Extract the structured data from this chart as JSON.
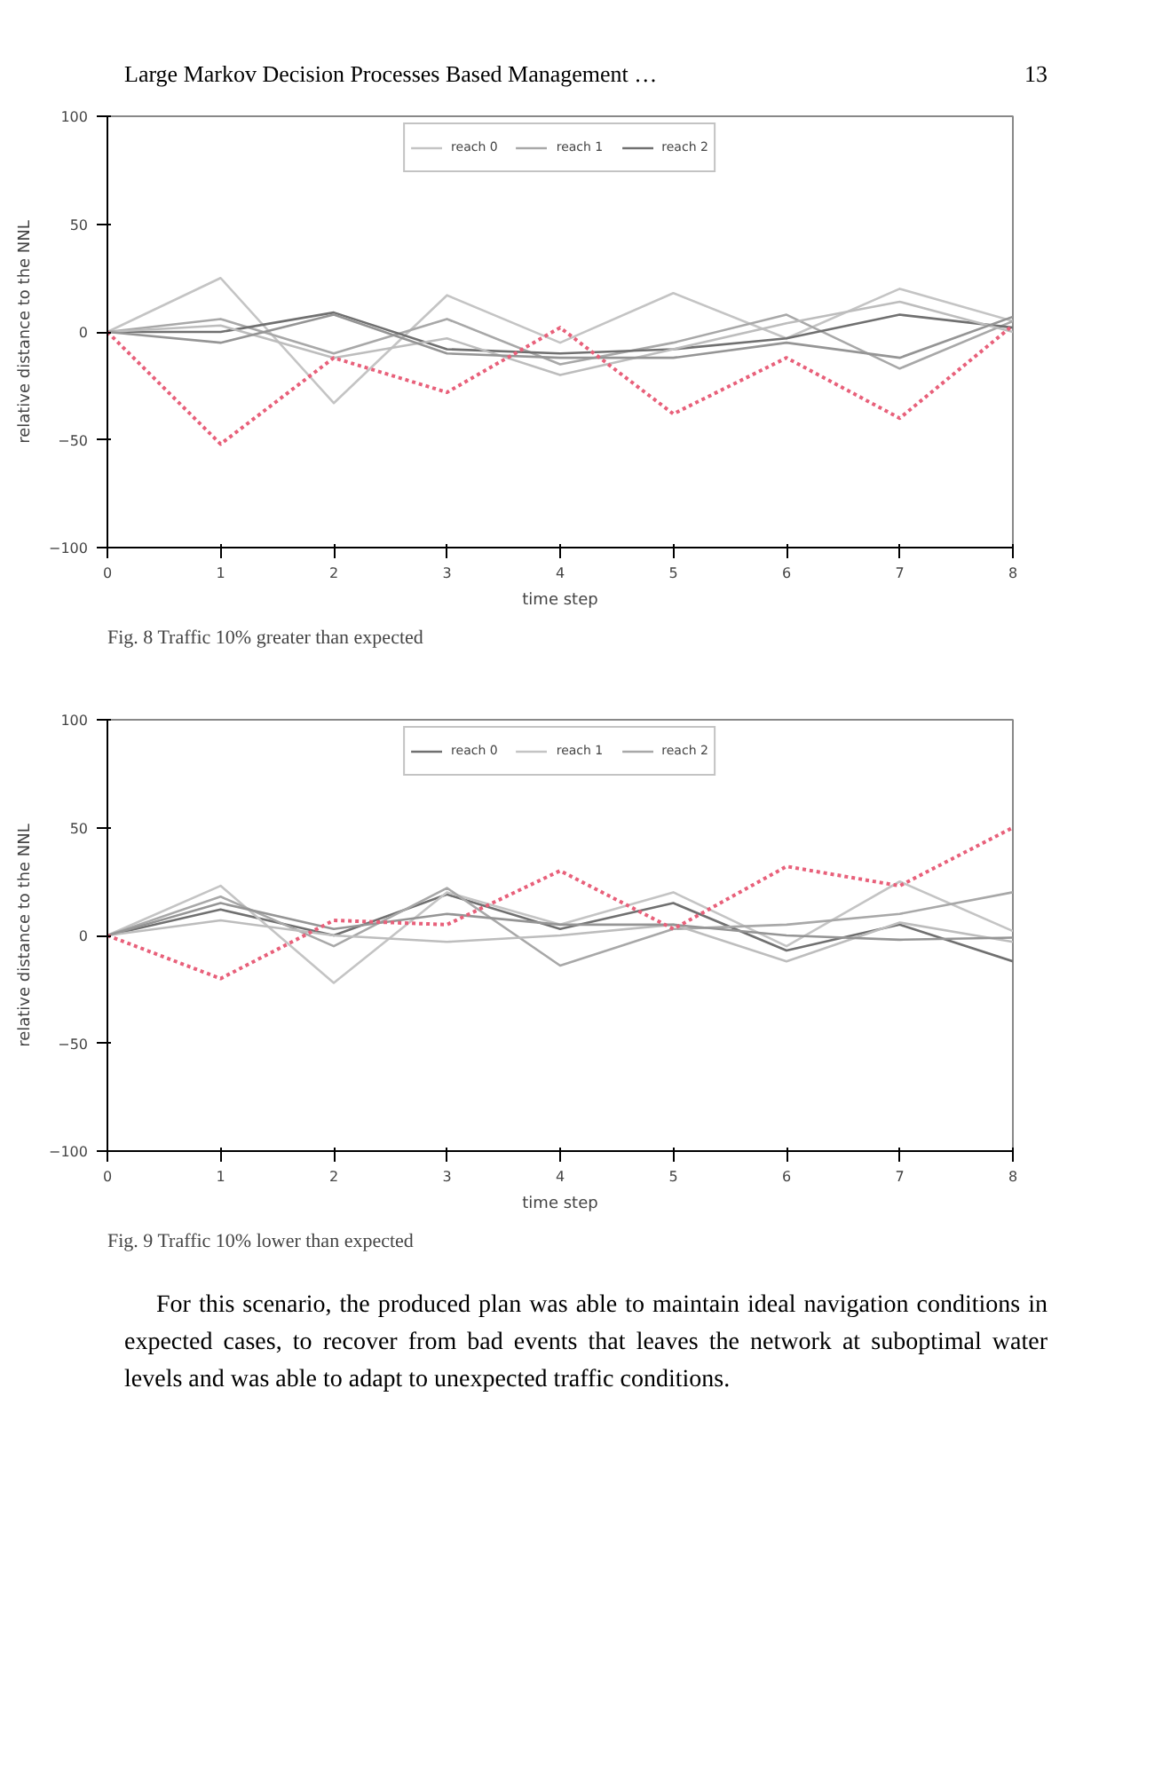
{
  "chart_data": [
    {
      "type": "line",
      "title": "Fig. 8  Traffic 10% greater than expected",
      "xlabel": "time step",
      "ylabel": "relative distance to the NNL",
      "annotations": [
        "Large Markov Decision Processes Based Management …",
        "13"
      ],
      "x": [
        0,
        1,
        2,
        3,
        4,
        5,
        6,
        7,
        8
      ],
      "xlim": [
        0,
        8
      ],
      "ylim": [
        -100,
        100
      ],
      "xticks": [
        0,
        1,
        2,
        3,
        4,
        5,
        6,
        7,
        8
      ],
      "yticks": [
        -100,
        -50,
        0,
        50,
        100
      ],
      "grid": false,
      "legend": "top",
      "marker": "none",
      "series": [
        {
          "name": "reach 0",
          "color": "#c4c4c4",
          "values": [
            0,
            25,
            -33,
            17,
            -5,
            18,
            -3,
            20,
            5
          ]
        },
        {
          "name": "reach 1",
          "color": "#a8a8a8",
          "values": [
            0,
            6,
            -10,
            6,
            -15,
            -5,
            8,
            -17,
            5
          ]
        },
        {
          "name": "reach 2",
          "color": "#707070",
          "values": [
            0,
            0,
            9,
            -8,
            -10,
            -8,
            -3,
            8,
            2
          ]
        },
        {
          "color": "#bdbdbd",
          "values": [
            0,
            3,
            -12,
            -3,
            -20,
            -8,
            4,
            14,
            0
          ]
        },
        {
          "color": "#959595",
          "values": [
            0,
            -5,
            8,
            -10,
            -12,
            -12,
            -5,
            -12,
            7
          ]
        },
        {
          "color": "#e8607a",
          "line_style": "dotted",
          "values": [
            0,
            -52,
            -12,
            -28,
            2,
            -38,
            -12,
            -40,
            3
          ]
        }
      ]
    },
    {
      "type": "line",
      "title": "Fig. 9  Traffic 10% lower than expected",
      "xlabel": "time step",
      "ylabel": "relative distance to the NNL",
      "annotations": [
        "For this scenario, the produced plan was able to maintain ideal navigation conditions in expected cases, to recover from bad events that leaves the network at suboptimal water levels and was able to adapt to unexpected traffic conditions."
      ],
      "x": [
        0,
        1,
        2,
        3,
        4,
        5,
        6,
        7,
        8
      ],
      "xlim": [
        0,
        8
      ],
      "ylim": [
        -100,
        100
      ],
      "xticks": [
        0,
        1,
        2,
        3,
        4,
        5,
        6,
        7,
        8
      ],
      "yticks": [
        -100,
        -50,
        0,
        50,
        100
      ],
      "grid": false,
      "legend": "top",
      "marker": "none",
      "series": [
        {
          "name": "reach 0",
          "color": "#707070",
          "values": [
            0,
            12,
            0,
            19,
            3,
            15,
            -7,
            5,
            -12
          ]
        },
        {
          "name": "reach 1",
          "color": "#c4c4c4",
          "values": [
            0,
            23,
            -22,
            20,
            5,
            20,
            -5,
            25,
            2
          ]
        },
        {
          "name": "reach 2",
          "color": "#a8a8a8",
          "values": [
            0,
            18,
            -5,
            22,
            -14,
            3,
            5,
            10,
            20
          ]
        },
        {
          "color": "#bdbdbd",
          "values": [
            0,
            7,
            0,
            -3,
            0,
            5,
            -12,
            6,
            -3
          ]
        },
        {
          "color": "#959595",
          "values": [
            0,
            15,
            3,
            10,
            5,
            5,
            0,
            -2,
            -1
          ]
        },
        {
          "color": "#e8607a",
          "line_style": "dotted",
          "values": [
            0,
            -20,
            7,
            5,
            30,
            3,
            32,
            23,
            50
          ]
        }
      ]
    }
  ]
}
